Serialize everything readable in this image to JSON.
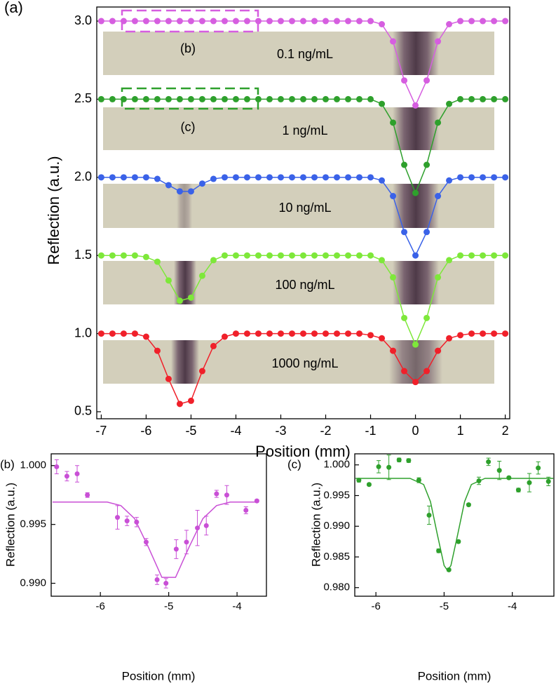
{
  "chart_data": [
    {
      "type": "line",
      "panel": "(a)",
      "x_label": "Position (mm)",
      "y_label": "Reflection (a.u.)",
      "xlim": [
        -7.1,
        2.1
      ],
      "ylim": [
        0.455,
        3.09
      ],
      "xticks": [
        -7,
        -6,
        -5,
        -4,
        -3,
        -2,
        -1,
        0,
        1,
        2
      ],
      "yticks": [
        0.5,
        {
          "value": 1,
          "label": "1.0"
        },
        1.5,
        {
          "value": 2,
          "label": "2.0"
        },
        2.5,
        {
          "value": 3,
          "label": "3.0"
        }
      ],
      "annotations": [
        "0.1 ng/mL",
        "1 ng/mL",
        "10 ng/mL",
        "100 ng/mL",
        "1000 ng/mL",
        "(b)",
        "(c)"
      ],
      "x": [
        -7,
        -6.75,
        -6.5,
        -6.25,
        -6,
        -5.75,
        -5.5,
        -5.25,
        -5,
        -4.75,
        -4.5,
        -4.25,
        -4,
        -3.75,
        -3.5,
        -3.25,
        -3,
        -2.75,
        -2.5,
        -2.25,
        -2,
        -1.75,
        -1.5,
        -1.25,
        -1,
        -0.75,
        -0.5,
        -0.25,
        0,
        0.25,
        0.5,
        0.75,
        1,
        1.25,
        1.5,
        1.75,
        2
      ],
      "series": [
        {
          "color": "#d65ee0",
          "mode": "lines+markers",
          "values": [
            3,
            3,
            3,
            3,
            3,
            3,
            3,
            3,
            3,
            3,
            3,
            3,
            3,
            3,
            3,
            3,
            3,
            3,
            3,
            3,
            3,
            3,
            3,
            3,
            3,
            2.98,
            2.87,
            2.62,
            2.46,
            2.62,
            2.87,
            2.98,
            3,
            3,
            3,
            3,
            3
          ]
        },
        {
          "color": "#2ea02c",
          "mode": "lines+markers",
          "values": [
            2.5,
            2.5,
            2.5,
            2.5,
            2.5,
            2.5,
            2.5,
            2.5,
            2.5,
            2.5,
            2.5,
            2.5,
            2.5,
            2.5,
            2.5,
            2.5,
            2.5,
            2.5,
            2.5,
            2.5,
            2.5,
            2.5,
            2.5,
            2.5,
            2.5,
            2.47,
            2.35,
            2.08,
            1.9,
            2.08,
            2.35,
            2.47,
            2.5,
            2.5,
            2.5,
            2.5,
            2.5
          ]
        },
        {
          "color": "#3a62e8",
          "mode": "lines+markers",
          "values": [
            2,
            2,
            2,
            2,
            2,
            1.99,
            1.95,
            1.91,
            1.91,
            1.96,
            1.99,
            2,
            2,
            2,
            2,
            2,
            2,
            2,
            2,
            2,
            2,
            2,
            2,
            2,
            2,
            1.98,
            1.88,
            1.65,
            1.5,
            1.65,
            1.88,
            1.98,
            2,
            2,
            2,
            2,
            2
          ]
        },
        {
          "color": "#7ee83a",
          "mode": "lines+markers",
          "values": [
            1.5,
            1.5,
            1.5,
            1.5,
            1.49,
            1.46,
            1.34,
            1.21,
            1.23,
            1.37,
            1.47,
            1.5,
            1.5,
            1.5,
            1.5,
            1.5,
            1.5,
            1.5,
            1.5,
            1.5,
            1.5,
            1.5,
            1.5,
            1.5,
            1.5,
            1.47,
            1.36,
            1.1,
            0.93,
            1.1,
            1.36,
            1.47,
            1.5,
            1.5,
            1.5,
            1.5,
            1.5
          ]
        },
        {
          "color": "#f0202a",
          "mode": "lines+markers",
          "values": [
            1,
            1,
            1,
            1,
            0.98,
            0.89,
            0.71,
            0.55,
            0.57,
            0.76,
            0.92,
            0.98,
            1,
            1,
            1,
            1,
            1,
            1,
            1,
            1,
            1,
            1,
            1,
            1,
            0.99,
            0.97,
            0.89,
            0.76,
            0.69,
            0.76,
            0.89,
            0.97,
            0.99,
            1,
            1,
            1,
            1
          ]
        }
      ]
    },
    {
      "type": "scatter",
      "panel": "(b)",
      "x_label": "Position (mm)",
      "y_label": "Reflection (a.u.)",
      "xlim": [
        -6.72,
        -3.57
      ],
      "ylim": [
        0.9889,
        1.001
      ],
      "xticks": [
        -6,
        -5,
        -4
      ],
      "yticks": [
        {
          "value": 0.99,
          "label": "0.990"
        },
        0.995,
        {
          "value": 1,
          "label": "1.000"
        }
      ],
      "series": [
        {
          "color": "#c94fd6",
          "mode": "markers",
          "x": [
            -6.64,
            -6.49,
            -6.34,
            -6.19,
            -5.75,
            -5.61,
            -5.47,
            -5.33,
            -5.17,
            -5.04,
            -4.89,
            -4.74,
            -4.58,
            -4.45,
            -4.3,
            -4.15,
            -3.87,
            -3.71
          ],
          "values": [
            0.9999,
            0.9991,
            0.9993,
            0.9975,
            0.9956,
            0.9953,
            0.9952,
            0.9935,
            0.9903,
            0.99,
            0.9929,
            0.9935,
            0.9947,
            0.9949,
            0.9976,
            0.9975,
            0.9962,
            0.997
          ],
          "errors": [
            0.0006,
            0.0004,
            0.0007,
            0.0002,
            0.001,
            0.0004,
            0.0004,
            0.0003,
            0.0004,
            0.0004,
            0.0008,
            0.001,
            0.0015,
            0.0008,
            0.0003,
            0.0008,
            0.0003,
            0.0001
          ]
        },
        {
          "color": "#c94fd6",
          "mode": "line",
          "x": [
            -6.7,
            -6.5,
            -6.3,
            -6.1,
            -5.9,
            -5.7,
            -5.5,
            -5.3,
            -5.1,
            -4.9,
            -4.7,
            -4.5,
            -4.3,
            -4.1,
            -3.9,
            -3.7
          ],
          "values": [
            0.9969,
            0.9969,
            0.9969,
            0.9969,
            0.9969,
            0.9966,
            0.9955,
            0.9931,
            0.9905,
            0.9905,
            0.9931,
            0.9955,
            0.9966,
            0.9969,
            0.9969,
            0.9969
          ]
        }
      ]
    },
    {
      "type": "scatter",
      "panel": "(c)",
      "x_label": "Position (mm)",
      "y_label": "Reflection (a.u.)",
      "xlim": [
        -6.31,
        -3.39
      ],
      "ylim": [
        0.9786,
        1.0018
      ],
      "xticks": [
        -6,
        -5,
        -4
      ],
      "yticks": [
        {
          "value": 0.98,
          "label": "0.980"
        },
        0.985,
        {
          "value": 0.99,
          "label": "0.990"
        },
        0.995,
        {
          "value": 1,
          "label": "1.000"
        }
      ],
      "series": [
        {
          "color": "#2ea02c",
          "mode": "markers",
          "x": [
            -6.25,
            -6.1,
            -5.96,
            -5.81,
            -5.66,
            -5.52,
            -5.37,
            -5.22,
            -5.08,
            -4.93,
            -4.79,
            -4.64,
            -4.49,
            -4.35,
            -4.19,
            -4.05,
            -3.91,
            -3.75,
            -3.62,
            -3.47
          ],
          "values": [
            0.9975,
            0.9968,
            0.9997,
            0.9996,
            1.0008,
            1.0007,
            0.9975,
            0.9918,
            0.986,
            0.9829,
            0.9875,
            0.9935,
            0.9974,
            1.0005,
            0.9991,
            0.9979,
            0.9959,
            0.9971,
            0.9995,
            0.9973
          ],
          "errors": [
            0.0003,
            0.0002,
            0.001,
            0.002,
            0.0003,
            0.0003,
            0.0004,
            0.0015,
            0.0003,
            0.0002,
            0.0002,
            0.0002,
            0.0006,
            0.0006,
            0.0015,
            0.0002,
            0.0003,
            0.0015,
            0.001,
            0.0007
          ]
        },
        {
          "color": "#2ea02c",
          "mode": "line",
          "x": [
            -6.3,
            -5.5,
            -5.3,
            -5.2,
            -5.1,
            -5,
            -4.95,
            -4.9,
            -4.8,
            -4.7,
            -4.6,
            -4.4,
            -3.4
          ],
          "values": [
            0.9978,
            0.9978,
            0.9968,
            0.994,
            0.9887,
            0.9836,
            0.9828,
            0.9836,
            0.9887,
            0.994,
            0.9968,
            0.9978,
            0.9978
          ]
        }
      ]
    }
  ]
}
